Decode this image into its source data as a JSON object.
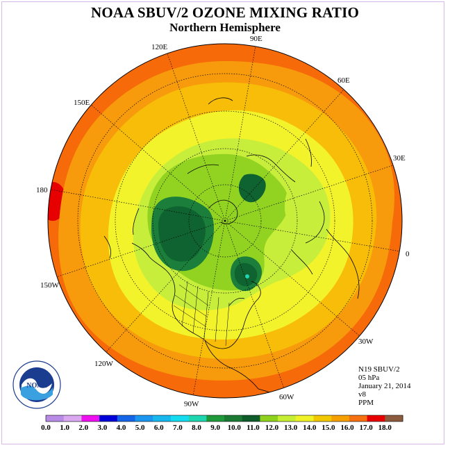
{
  "title": "NOAA SBUV/2 OZONE MIXING RATIO",
  "subtitle": "Northern Hemisphere",
  "logo": {
    "text": "NOAA",
    "ring_text": "NATIONAL OCEANIC AND ATMOSPHERIC ADMINISTRATION · U.S. DEPARTMENT OF COMMERCE"
  },
  "info": {
    "instrument": "N19 SBUV/2",
    "level": "05 hPa",
    "date": "January 21, 2014",
    "version": "v8",
    "units": "PPM"
  },
  "longitude_labels": {
    "lon_90E": "90E",
    "lon_60E": "60E",
    "lon_30E": "30E",
    "lon_0": "0",
    "lon_30W": "30W",
    "lon_60W": "60W",
    "lon_90W": "90W",
    "lon_120W": "120W",
    "lon_150W": "150W",
    "lon_180": "180",
    "lon_150E": "150E",
    "lon_120E": "120E"
  },
  "colorbar": {
    "ticks": [
      "0.0",
      "1.0",
      "2.0",
      "3.0",
      "4.0",
      "5.0",
      "6.0",
      "7.0",
      "8.0",
      "9.0",
      "10.0",
      "11.0",
      "12.0",
      "13.0",
      "14.0",
      "15.0",
      "16.0",
      "17.0",
      "18.0"
    ],
    "colors": [
      "#b78be6",
      "#d9a8f0",
      "#ee10ee",
      "#0000d8",
      "#1565e8",
      "#1a96ee",
      "#18b8ef",
      "#14dcf0",
      "#1ed6b0",
      "#1e9a3a",
      "#1a7a34",
      "#0e5c2a",
      "#8fd21e",
      "#c6ee34",
      "#f0f228",
      "#f2c800",
      "#f5a000",
      "#f47010",
      "#e60000",
      "#8c5a3c"
    ]
  },
  "colors": {
    "outer_orange": "#f66a0a",
    "orange": "#f79a0c",
    "light_orange": "#f7bd08",
    "yellow": "#f3f32b",
    "light_green": "#c8ee3c",
    "green": "#92d322",
    "dark_green": "#0f6330",
    "medium_green": "#1b7e3a",
    "red": "#e60000"
  }
}
